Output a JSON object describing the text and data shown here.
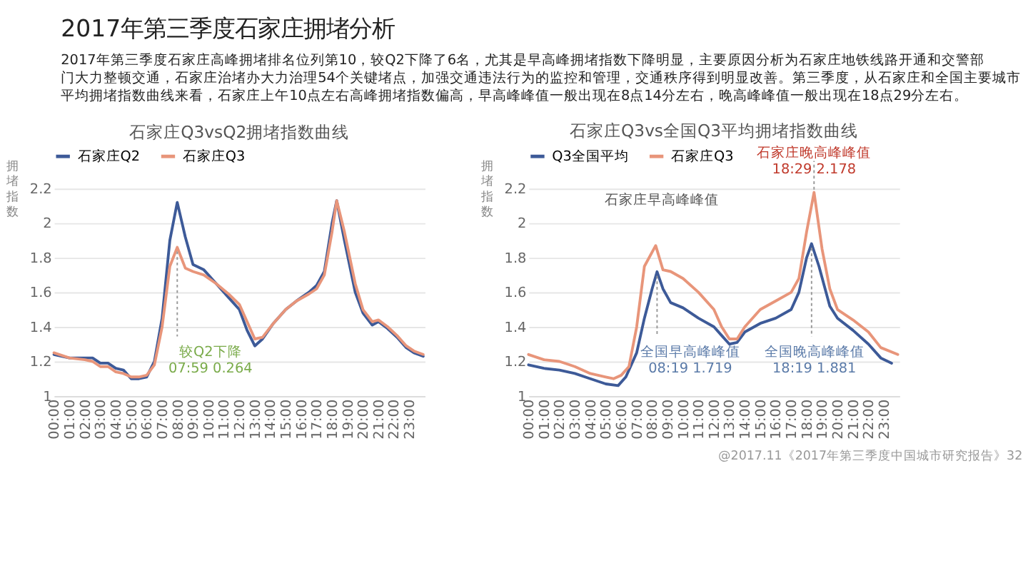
{
  "chart_data": [
    {
      "type": "other",
      "title": "2017年第三季度石家庄拥堵分析",
      "annotations": [
        "2017年第三季度石家庄高峰拥堵排名位列第10，较Q2下降了6名，尤其是早高峰拥堵指数下降明显，主要原因分析为石家庄地铁线路开通和交警部门大力整顿交通，石家庄治堵办大力治理54个关键堵点，加强交通违法行为的监控和管理，交通秩序得到明显改善。第三季度，从石家庄和全国主要城市平均拥堵指数曲线来看，石家庄上午10点左右高峰拥堵指数偏高，早高峰峰值一般出现在8点14分左右，晚高峰峰值一般出现在18点29分左右。",
        "@2017.11《2017年第三季度中国城市研究报告》32"
      ]
    },
    {
      "type": "line",
      "title": "石家庄Q3vsQ2拥堵指数曲线",
      "ylabel": "拥堵指数",
      "legend": "top",
      "grid": "y",
      "x": [
        0,
        1,
        2,
        2.5,
        3,
        3.5,
        4,
        4.5,
        5,
        5.5,
        6,
        6.5,
        7,
        7.5,
        7.98,
        8.5,
        9.0,
        9.7,
        10.5,
        11.3,
        12,
        12.5,
        13,
        13.5,
        14.2,
        15,
        15.7,
        16.5,
        17,
        17.5,
        18,
        18.3,
        18.8,
        19.5,
        20,
        20.6,
        21,
        21.6,
        22.2,
        22.8,
        23.3,
        23.9
      ],
      "series": [
        {
          "name": "石家庄Q2",
          "color": "#3d5a98",
          "values": [
            1.24,
            1.22,
            1.22,
            1.22,
            1.19,
            1.19,
            1.16,
            1.15,
            1.1,
            1.1,
            1.11,
            1.2,
            1.45,
            1.9,
            2.12,
            1.92,
            1.76,
            1.73,
            1.65,
            1.57,
            1.5,
            1.38,
            1.29,
            1.33,
            1.42,
            1.5,
            1.55,
            1.6,
            1.64,
            1.72,
            2.0,
            2.13,
            1.9,
            1.6,
            1.48,
            1.41,
            1.43,
            1.39,
            1.34,
            1.28,
            1.25,
            1.23
          ]
        },
        {
          "name": "石家庄Q3",
          "color": "#e8957a",
          "values": [
            1.25,
            1.22,
            1.21,
            1.2,
            1.17,
            1.17,
            1.14,
            1.13,
            1.11,
            1.11,
            1.12,
            1.18,
            1.4,
            1.75,
            1.86,
            1.74,
            1.72,
            1.7,
            1.65,
            1.59,
            1.53,
            1.43,
            1.33,
            1.34,
            1.42,
            1.5,
            1.55,
            1.59,
            1.62,
            1.7,
            1.95,
            2.13,
            1.95,
            1.65,
            1.5,
            1.43,
            1.44,
            1.4,
            1.35,
            1.29,
            1.26,
            1.24
          ]
        }
      ],
      "xlim": [
        0,
        24
      ],
      "ylim": [
        1,
        2.2
      ],
      "yticks": [
        1,
        1.2,
        1.4,
        1.6,
        1.8,
        2,
        2.2
      ],
      "xticks": [
        {
          "value": 0,
          "label": "00:00"
        },
        {
          "value": 1,
          "label": "01:00"
        },
        {
          "value": 2,
          "label": "02:00"
        },
        {
          "value": 3,
          "label": "03:00"
        },
        {
          "value": 4,
          "label": "04:00"
        },
        {
          "value": 5,
          "label": "05:00"
        },
        {
          "value": 6,
          "label": "06:00"
        },
        {
          "value": 7,
          "label": "07:00"
        },
        {
          "value": 8,
          "label": "08:00"
        },
        {
          "value": 9,
          "label": "09:00"
        },
        {
          "value": 10,
          "label": "10:00"
        },
        {
          "value": 11,
          "label": "11:00"
        },
        {
          "value": 12,
          "label": "12:00"
        },
        {
          "value": 13,
          "label": "13:00"
        },
        {
          "value": 14,
          "label": "14:00"
        },
        {
          "value": 15,
          "label": "15:00"
        },
        {
          "value": 16,
          "label": "16:00"
        },
        {
          "value": 17,
          "label": "17:00"
        },
        {
          "value": 18,
          "label": "18:00"
        },
        {
          "value": 19,
          "label": "19:00"
        },
        {
          "value": 20,
          "label": "20:00"
        },
        {
          "value": 21,
          "label": "21:00"
        },
        {
          "value": 22,
          "label": "22:00"
        },
        {
          "value": 23,
          "label": "23:00"
        }
      ],
      "annotations": [
        {
          "text": "较Q2下降 07:59 0.264",
          "x": 7.98,
          "y": 1.86
        }
      ]
    },
    {
      "type": "line",
      "title": "石家庄Q3vs全国Q3平均拥堵指数曲线",
      "ylabel": "拥堵指数",
      "legend": "top",
      "grid": "y",
      "series": [
        {
          "name": "Q3全国平均",
          "color": "#3d5a98",
          "x": [
            0,
            1,
            2,
            3,
            4,
            5,
            5.8,
            6.3,
            7,
            7.5,
            8.0,
            8.32,
            8.7,
            9.2,
            10,
            11,
            12,
            12.5,
            13,
            13.5,
            14,
            15,
            16,
            17,
            17.5,
            18,
            18.32,
            18.8,
            19.5,
            20,
            21,
            22,
            22.8,
            23.5
          ],
          "values": [
            1.18,
            1.16,
            1.15,
            1.13,
            1.1,
            1.07,
            1.06,
            1.11,
            1.25,
            1.45,
            1.62,
            1.719,
            1.62,
            1.54,
            1.51,
            1.45,
            1.4,
            1.35,
            1.3,
            1.31,
            1.37,
            1.42,
            1.45,
            1.5,
            1.6,
            1.8,
            1.881,
            1.75,
            1.52,
            1.45,
            1.38,
            1.3,
            1.22,
            1.19
          ]
        },
        {
          "name": "石家庄Q3",
          "color": "#e8957a",
          "x": [
            0,
            1,
            2,
            3,
            4,
            5,
            5.5,
            6,
            6.5,
            7,
            7.5,
            8.23,
            8.7,
            9.2,
            10,
            11,
            12,
            12.5,
            13,
            13.5,
            14,
            15,
            16,
            17,
            17.5,
            18,
            18.48,
            19,
            19.5,
            20,
            21,
            22,
            22.8,
            23.9
          ],
          "values": [
            1.24,
            1.21,
            1.2,
            1.17,
            1.13,
            1.11,
            1.1,
            1.12,
            1.17,
            1.4,
            1.75,
            1.87,
            1.73,
            1.72,
            1.68,
            1.6,
            1.5,
            1.4,
            1.33,
            1.33,
            1.4,
            1.5,
            1.55,
            1.6,
            1.68,
            1.95,
            2.178,
            1.85,
            1.62,
            1.5,
            1.44,
            1.37,
            1.28,
            1.24
          ]
        }
      ],
      "xlim": [
        0,
        24
      ],
      "ylim": [
        1,
        2.2
      ],
      "yticks": [
        1,
        1.2,
        1.4,
        1.6,
        1.8,
        2,
        2.2
      ],
      "xticks": [
        {
          "value": 0,
          "label": "00:00"
        },
        {
          "value": 1,
          "label": "01:00"
        },
        {
          "value": 2,
          "label": "02:00"
        },
        {
          "value": 3,
          "label": "03:00"
        },
        {
          "value": 4,
          "label": "04:00"
        },
        {
          "value": 5,
          "label": "05:00"
        },
        {
          "value": 6,
          "label": "06:00"
        },
        {
          "value": 7,
          "label": "07:00"
        },
        {
          "value": 8,
          "label": "08:00"
        },
        {
          "value": 9,
          "label": "09:00"
        },
        {
          "value": 10,
          "label": "10:00"
        },
        {
          "value": 11,
          "label": "11:00"
        },
        {
          "value": 12,
          "label": "12:00"
        },
        {
          "value": 13,
          "label": "13:00"
        },
        {
          "value": 14,
          "label": "14:00"
        },
        {
          "value": 15,
          "label": "15:00"
        },
        {
          "value": 16,
          "label": "16:00"
        },
        {
          "value": 17,
          "label": "17:00"
        },
        {
          "value": 18,
          "label": "18:00"
        },
        {
          "value": 19,
          "label": "19:00"
        },
        {
          "value": 20,
          "label": "20:00"
        },
        {
          "value": 21,
          "label": "21:00"
        },
        {
          "value": 22,
          "label": "22:00"
        },
        {
          "value": 23,
          "label": "23:00"
        }
      ],
      "annotations": [
        "石家庄早高峰峰值",
        {
          "text": "石家庄晚高峰峰值 18:29 2.178",
          "x": 18.48,
          "y": 2.178
        },
        {
          "text": "全国早高峰峰值 08:19 1.719",
          "x": 8.32,
          "y": 1.719
        },
        {
          "text": "全国晚高峰峰值 18:19 1.881",
          "x": 18.32,
          "y": 1.881
        }
      ]
    }
  ]
}
